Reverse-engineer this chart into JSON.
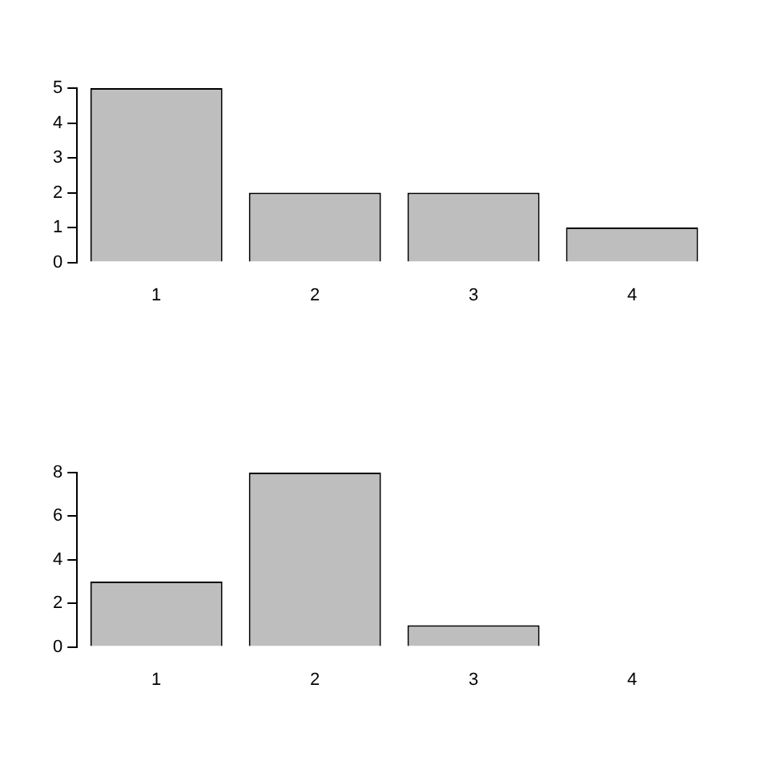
{
  "chart_data": [
    {
      "type": "bar",
      "categories": [
        "1",
        "2",
        "3",
        "4"
      ],
      "values": [
        5,
        2,
        2,
        1
      ],
      "color": "#bebebe",
      "ylim": [
        0,
        5
      ],
      "yticks": [
        0,
        1,
        2,
        3,
        4,
        5
      ],
      "grid": false,
      "legend": false
    },
    {
      "type": "bar",
      "categories": [
        "1",
        "2",
        "3",
        "4"
      ],
      "values": [
        3,
        8,
        1,
        0
      ],
      "color": "#bebebe",
      "ylim": [
        0,
        8
      ],
      "yticks": [
        0,
        2,
        4,
        6,
        8
      ],
      "grid": false,
      "legend": false
    }
  ]
}
